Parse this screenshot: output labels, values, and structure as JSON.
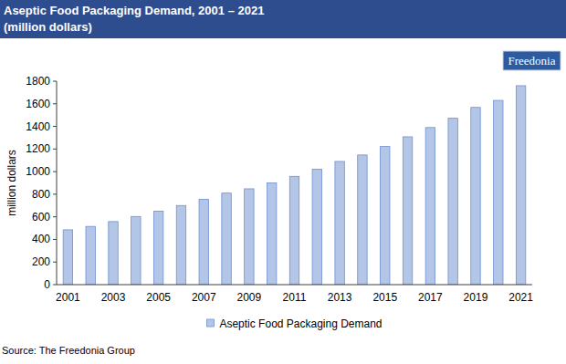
{
  "chart_data": {
    "type": "bar",
    "title": "Aseptic Food Packaging Demand, 2001 – 2021",
    "subtitle": "(million dollars)",
    "y_label": "million dollars",
    "source": "Source: The Freedonia Group",
    "logo": "Freedonia",
    "categories": [
      "2001",
      null,
      "2003",
      null,
      "2005",
      null,
      "2007",
      null,
      "2009",
      null,
      "2011",
      null,
      "2013",
      null,
      "2015",
      null,
      "2017",
      null,
      "2019",
      null,
      "2021"
    ],
    "series": [
      {
        "name": "Aseptic Food Packaging Demand",
        "color": "#b4c6e7",
        "values": [
          485,
          515,
          558,
          603,
          650,
          700,
          755,
          810,
          848,
          900,
          958,
          1022,
          1090,
          1147,
          1222,
          1308,
          1390,
          1472,
          1568,
          1630,
          1760
        ]
      }
    ],
    "ylim": [
      0,
      1800
    ],
    "yticks": [
      0,
      200,
      400,
      600,
      800,
      1000,
      1200,
      1400,
      1600,
      1800
    ],
    "grid": false,
    "legend": "bottom"
  }
}
